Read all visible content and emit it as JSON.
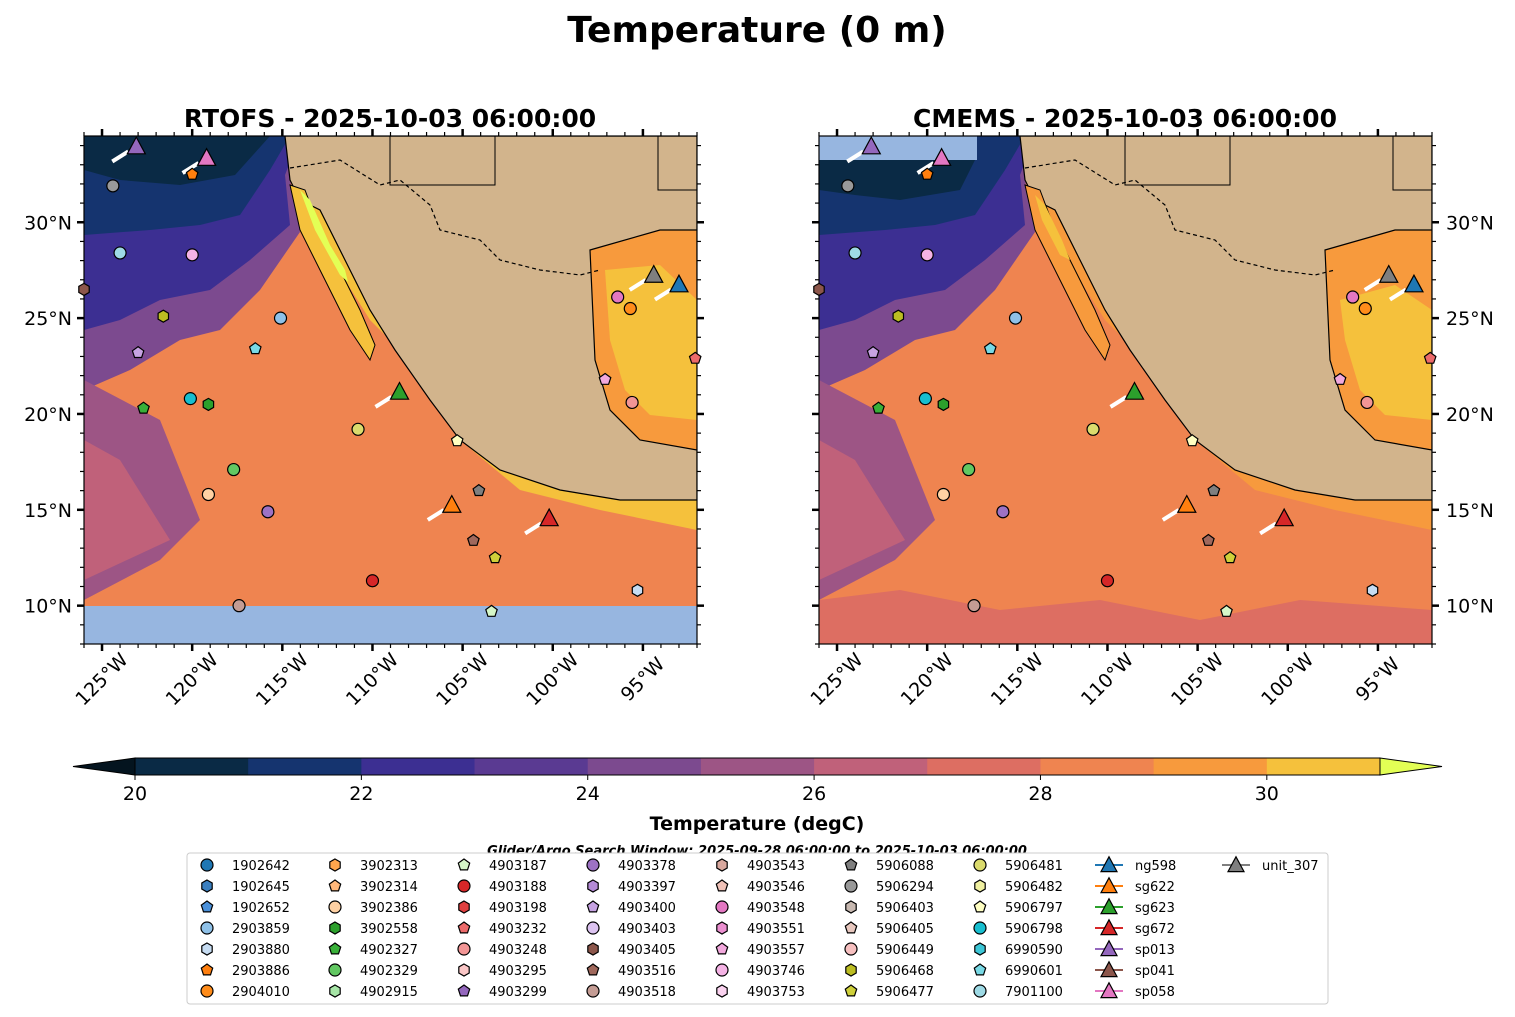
{
  "figure": {
    "suptitle": "Temperature (0 m)",
    "search_window": "Glider/Argo Search Window: 2025-09-28 06:00:00 to 2025-10-03 06:00:00"
  },
  "chart_data": {
    "type": "map-contour",
    "panels": [
      {
        "title": "RTOFS - 2025-10-03 06:00:00"
      },
      {
        "title": "CMEMS - 2025-10-03 06:00:00"
      }
    ],
    "lon_range": [
      -126,
      -92
    ],
    "lat_range": [
      8,
      34.5
    ],
    "lon_ticks": [
      -125,
      -120,
      -115,
      -110,
      -105,
      -100,
      -95
    ],
    "lon_tick_labels": [
      "125°W",
      "120°W",
      "115°W",
      "110°W",
      "105°W",
      "100°W",
      "95°W"
    ],
    "lat_ticks": [
      10,
      15,
      20,
      25,
      30
    ],
    "lat_tick_labels": [
      "10°N",
      "15°N",
      "20°N",
      "25°N",
      "30°N"
    ],
    "colorbar": {
      "label": "Temperature (degC)",
      "min": 20,
      "max": 31,
      "step": 1,
      "ticks": [
        20,
        22,
        24,
        26,
        28,
        30
      ],
      "tick_labels": [
        "20",
        "22",
        "24",
        "26",
        "28",
        "30"
      ],
      "colors": [
        "#0a2a45",
        "#15346f",
        "#3c2f92",
        "#5a3a92",
        "#7c4a8f",
        "#9d5585",
        "#c0617a",
        "#dd6e62",
        "#ef8450",
        "#f79a3d",
        "#f5c13c"
      ],
      "under_color": "#04141f",
      "over_color": "#e3ff55"
    },
    "platforms": [
      {
        "id": "1902642",
        "marker": "o",
        "color": "#1f77b4",
        "lon": null,
        "lat": null
      },
      {
        "id": "1902645",
        "marker": "h",
        "color": "#3b7fbf",
        "lon": null,
        "lat": null
      },
      {
        "id": "1902652",
        "marker": "p",
        "color": "#4a90d9",
        "lon": null,
        "lat": null
      },
      {
        "id": "2903859",
        "marker": "o",
        "color": "#8fc1e8",
        "lon": -115.1,
        "lat": 25.0
      },
      {
        "id": "2903880",
        "marker": "h",
        "color": "#c6dcf2",
        "lon": -95.3,
        "lat": 10.8
      },
      {
        "id": "2903886",
        "marker": "p",
        "color": "#ff7f0e",
        "lon": -120.0,
        "lat": 32.5
      },
      {
        "id": "2904010",
        "marker": "o",
        "color": "#ff8c1a",
        "lon": -95.7,
        "lat": 25.5
      },
      {
        "id": "3902313",
        "marker": "h",
        "color": "#ffa64d",
        "lon": null,
        "lat": null
      },
      {
        "id": "3902314",
        "marker": "p",
        "color": "#ffb77a",
        "lon": null,
        "lat": null
      },
      {
        "id": "3902386",
        "marker": "o",
        "color": "#ffd1a3",
        "lon": -119.1,
        "lat": 15.8
      },
      {
        "id": "3902558",
        "marker": "h",
        "color": "#2ca02c",
        "lon": -119.1,
        "lat": 20.5
      },
      {
        "id": "4902327",
        "marker": "p",
        "color": "#38b038",
        "lon": -122.7,
        "lat": 20.3
      },
      {
        "id": "4902329",
        "marker": "o",
        "color": "#62c862",
        "lon": -117.7,
        "lat": 17.1
      },
      {
        "id": "4902915",
        "marker": "h",
        "color": "#a7e6a7",
        "lon": null,
        "lat": null
      },
      {
        "id": "4903187",
        "marker": "p",
        "color": "#d6f7c8",
        "lon": -103.4,
        "lat": 9.7
      },
      {
        "id": "4903188",
        "marker": "o",
        "color": "#d62728",
        "lon": -110.0,
        "lat": 11.3
      },
      {
        "id": "4903198",
        "marker": "h",
        "color": "#e04040",
        "lon": null,
        "lat": null
      },
      {
        "id": "4903232",
        "marker": "p",
        "color": "#ec6a6a",
        "lon": -92.1,
        "lat": 22.9
      },
      {
        "id": "4903248",
        "marker": "o",
        "color": "#f29595",
        "lon": -95.6,
        "lat": 20.6
      },
      {
        "id": "4903295",
        "marker": "h",
        "color": "#fac6c6",
        "lon": null,
        "lat": null
      },
      {
        "id": "4903299",
        "marker": "p",
        "color": "#9467bd",
        "lon": null,
        "lat": null
      },
      {
        "id": "4903378",
        "marker": "o",
        "color": "#9d72c4",
        "lon": -115.8,
        "lat": 14.9
      },
      {
        "id": "4903397",
        "marker": "h",
        "color": "#b48ad6",
        "lon": null,
        "lat": null
      },
      {
        "id": "4903400",
        "marker": "p",
        "color": "#c7a3e3",
        "lon": -123.0,
        "lat": 23.2
      },
      {
        "id": "4903403",
        "marker": "o",
        "color": "#dcc3f0",
        "lon": null,
        "lat": null
      },
      {
        "id": "4903405",
        "marker": "h",
        "color": "#8c564b",
        "lon": -126.0,
        "lat": 26.5
      },
      {
        "id": "4903516",
        "marker": "p",
        "color": "#a0685c",
        "lon": -104.4,
        "lat": 13.4
      },
      {
        "id": "4903518",
        "marker": "o",
        "color": "#c49c94",
        "lon": -117.4,
        "lat": 10.0
      },
      {
        "id": "4903543",
        "marker": "h",
        "color": "#d9a89e",
        "lon": null,
        "lat": null
      },
      {
        "id": "4903546",
        "marker": "p",
        "color": "#f0c2b8",
        "lon": null,
        "lat": null
      },
      {
        "id": "4903548",
        "marker": "o",
        "color": "#e377c2",
        "lon": -96.4,
        "lat": 26.1
      },
      {
        "id": "4903551",
        "marker": "h",
        "color": "#eb8fd0",
        "lon": null,
        "lat": null
      },
      {
        "id": "4903557",
        "marker": "p",
        "color": "#f2a8dd",
        "lon": -97.1,
        "lat": 21.8
      },
      {
        "id": "4903746",
        "marker": "o",
        "color": "#f5b3e5",
        "lon": -120.0,
        "lat": 28.3
      },
      {
        "id": "4903753",
        "marker": "h",
        "color": "#fbd3f0",
        "lon": null,
        "lat": null
      },
      {
        "id": "5906088",
        "marker": "p",
        "color": "#7f7f7f",
        "lon": -104.1,
        "lat": 16.0
      },
      {
        "id": "5906294",
        "marker": "o",
        "color": "#999999",
        "lon": -124.4,
        "lat": 31.9
      },
      {
        "id": "5906403",
        "marker": "h",
        "color": "#c7b8b0",
        "lon": null,
        "lat": null
      },
      {
        "id": "5906405",
        "marker": "p",
        "color": "#e8c8bf",
        "lon": null,
        "lat": null
      },
      {
        "id": "5906449",
        "marker": "o",
        "color": "#f7c0c0",
        "lon": null,
        "lat": null
      },
      {
        "id": "5906468",
        "marker": "h",
        "color": "#bcbd22",
        "lon": -121.6,
        "lat": 25.1
      },
      {
        "id": "5906477",
        "marker": "p",
        "color": "#cfd03a",
        "lon": -103.2,
        "lat": 12.5
      },
      {
        "id": "5906481",
        "marker": "o",
        "color": "#dbdb6d",
        "lon": -110.8,
        "lat": 19.2
      },
      {
        "id": "5906482",
        "marker": "h",
        "color": "#f0f0a0",
        "lon": null,
        "lat": null
      },
      {
        "id": "5906797",
        "marker": "p",
        "color": "#ffffc2",
        "lon": -105.3,
        "lat": 18.6
      },
      {
        "id": "5906798",
        "marker": "o",
        "color": "#17becf",
        "lon": -120.1,
        "lat": 20.8
      },
      {
        "id": "6990590",
        "marker": "h",
        "color": "#3cc6d6",
        "lon": null,
        "lat": null
      },
      {
        "id": "6990601",
        "marker": "p",
        "color": "#78d9e5",
        "lon": -116.5,
        "lat": 23.4
      },
      {
        "id": "7901100",
        "marker": "o",
        "color": "#9edae5",
        "lon": -124.0,
        "lat": 28.4
      },
      {
        "id": "ng598",
        "marker": "^",
        "color": "#1f77b4",
        "lon": -93.0,
        "lat": 26.7
      },
      {
        "id": "sg622",
        "marker": "^",
        "color": "#ff7f0e",
        "lon": -105.6,
        "lat": 15.2
      },
      {
        "id": "sg623",
        "marker": "^",
        "color": "#2ca02c",
        "lon": -108.5,
        "lat": 21.1
      },
      {
        "id": "sg672",
        "marker": "^",
        "color": "#d62728",
        "lon": -100.2,
        "lat": 14.5
      },
      {
        "id": "sp013",
        "marker": "^",
        "color": "#9467bd",
        "lon": -123.1,
        "lat": 33.9
      },
      {
        "id": "sp041",
        "marker": "^",
        "color": "#8c564b",
        "lon": null,
        "lat": null
      },
      {
        "id": "sp058",
        "marker": "^",
        "color": "#e377c2",
        "lon": -119.2,
        "lat": 33.3
      },
      {
        "id": "unit_307",
        "marker": "^",
        "color": "#7f7f7f",
        "lon": -94.4,
        "lat": 27.2
      }
    ]
  }
}
